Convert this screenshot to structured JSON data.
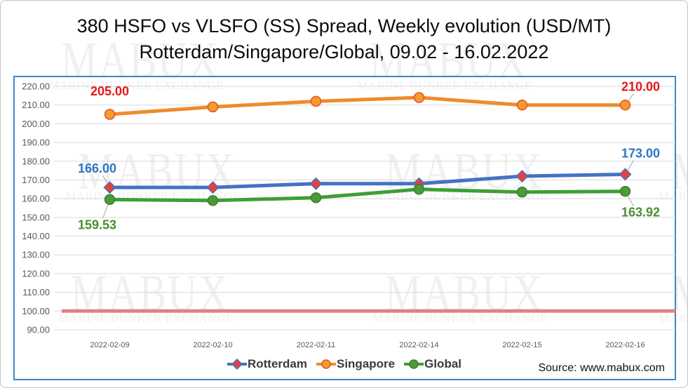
{
  "watermark": {
    "brand": "MABUX",
    "tagline": "MARINE BUNKER EXCHANGE"
  },
  "source": "Source: www.mabux.com",
  "chart_data": {
    "type": "line",
    "title": "380 HSFO vs VLSFO (SS) Spread, Weekly evolution (USD/MT)",
    "subtitle": "Rotterdam/Singapore/Global, 09.02 - 16.02.2022",
    "categories": [
      "2022-02-09",
      "2022-02-10",
      "2022-02-11",
      "2022-02-14",
      "2022-02-15",
      "2022-02-16"
    ],
    "ylim": [
      90,
      220
    ],
    "y_ticks": [
      "90.00",
      "100.00",
      "110.00",
      "120.00",
      "130.00",
      "140.00",
      "150.00",
      "160.00",
      "170.00",
      "180.00",
      "190.00",
      "200.00",
      "210.00",
      "220.00"
    ],
    "grid": "horizontal",
    "legend": "bottom",
    "reference_line": {
      "value": 100,
      "color": "#e57373"
    },
    "series": [
      {
        "name": "Rotterdam",
        "values": [
          166,
          166,
          168,
          168,
          172,
          173
        ],
        "color": "#4472c4",
        "marker": "diamond",
        "marker_fill": "#e8413b",
        "marker_stroke": "#4472c4",
        "label_color": "#2f74c6",
        "labels": [
          {
            "index": 0,
            "text": "166.00"
          },
          {
            "index": 5,
            "text": "173.00"
          }
        ]
      },
      {
        "name": "Singapore",
        "values": [
          205,
          209,
          212,
          214,
          210,
          210
        ],
        "color": "#ef8b2c",
        "marker": "circle",
        "marker_fill": "#f59a33",
        "marker_stroke": "#e2531d",
        "label_color": "#e61717",
        "labels": [
          {
            "index": 0,
            "text": "205.00"
          },
          {
            "index": 5,
            "text": "210.00"
          }
        ]
      },
      {
        "name": "Global",
        "values": [
          159.53,
          159,
          160.5,
          165,
          163.5,
          163.92
        ],
        "color": "#3e9f36",
        "marker": "circle",
        "marker_fill": "#4e9a3b",
        "marker_stroke": "#3b7d2c",
        "label_color": "#4a8f2e",
        "labels": [
          {
            "index": 0,
            "text": "159.53"
          },
          {
            "index": 5,
            "text": "163.92"
          }
        ]
      }
    ]
  }
}
